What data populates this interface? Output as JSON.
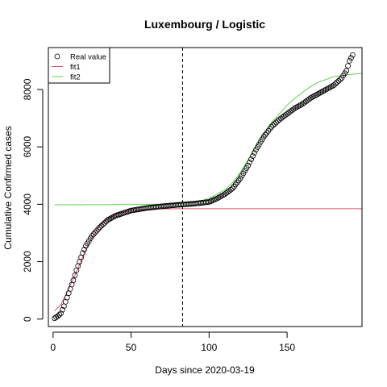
{
  "chart_data": {
    "type": "scatter",
    "title": "Luxembourg / Logistic",
    "xlabel": "Days since 2020-03-19",
    "ylabel": "Cumulative Confirmed cases",
    "xlim": [
      -3,
      198
    ],
    "ylim": [
      -260,
      9460
    ],
    "x_ticks": [
      0,
      50,
      100,
      150
    ],
    "y_ticks": [
      0,
      2000,
      4000,
      6000,
      8000
    ],
    "vline_x": 83,
    "legend": {
      "position": "top-left",
      "entries": [
        {
          "label": "Real value",
          "marker": "circle",
          "color": "#000000"
        },
        {
          "label": "fit1",
          "marker": "line",
          "color": "#DF536B"
        },
        {
          "label": "fit2",
          "marker": "line",
          "color": "#61D04F"
        }
      ]
    },
    "series": [
      {
        "name": "Real value",
        "kind": "points",
        "color": "#000000",
        "x_start": 1,
        "x_end": 192,
        "anchors": [
          [
            1,
            30
          ],
          [
            3,
            100
          ],
          [
            5,
            200
          ],
          [
            7,
            450
          ],
          [
            10,
            900
          ],
          [
            13,
            1350
          ],
          [
            15,
            1700
          ],
          [
            17,
            2000
          ],
          [
            19,
            2300
          ],
          [
            21,
            2550
          ],
          [
            25,
            2900
          ],
          [
            30,
            3200
          ],
          [
            35,
            3450
          ],
          [
            40,
            3600
          ],
          [
            50,
            3780
          ],
          [
            60,
            3870
          ],
          [
            70,
            3930
          ],
          [
            80,
            3980
          ],
          [
            90,
            4020
          ],
          [
            100,
            4080
          ],
          [
            105,
            4200
          ],
          [
            110,
            4350
          ],
          [
            115,
            4550
          ],
          [
            120,
            4900
          ],
          [
            125,
            5350
          ],
          [
            130,
            5900
          ],
          [
            135,
            6350
          ],
          [
            140,
            6700
          ],
          [
            145,
            6950
          ],
          [
            150,
            7150
          ],
          [
            155,
            7350
          ],
          [
            160,
            7500
          ],
          [
            165,
            7700
          ],
          [
            170,
            7850
          ],
          [
            175,
            8000
          ],
          [
            180,
            8150
          ],
          [
            185,
            8400
          ],
          [
            188,
            8650
          ],
          [
            190,
            9000
          ],
          [
            192,
            9200
          ]
        ]
      },
      {
        "name": "fit1",
        "kind": "line",
        "color": "#DF536B",
        "anchors": [
          [
            1,
            280
          ],
          [
            5,
            500
          ],
          [
            10,
            1050
          ],
          [
            15,
            1650
          ],
          [
            20,
            2300
          ],
          [
            25,
            2850
          ],
          [
            30,
            3250
          ],
          [
            35,
            3500
          ],
          [
            40,
            3650
          ],
          [
            50,
            3780
          ],
          [
            60,
            3830
          ],
          [
            70,
            3840
          ],
          [
            80,
            3845
          ],
          [
            100,
            3845
          ],
          [
            198,
            3845
          ]
        ]
      },
      {
        "name": "fit2",
        "kind": "line",
        "color": "#61D04F",
        "anchors": [
          [
            1,
            3980
          ],
          [
            50,
            3990
          ],
          [
            70,
            4000
          ],
          [
            90,
            4060
          ],
          [
            100,
            4200
          ],
          [
            110,
            4500
          ],
          [
            115,
            4750
          ],
          [
            120,
            5100
          ],
          [
            125,
            5550
          ],
          [
            130,
            6000
          ],
          [
            135,
            6450
          ],
          [
            140,
            6850
          ],
          [
            145,
            7150
          ],
          [
            150,
            7450
          ],
          [
            155,
            7700
          ],
          [
            160,
            7900
          ],
          [
            165,
            8100
          ],
          [
            170,
            8250
          ],
          [
            175,
            8350
          ],
          [
            180,
            8450
          ],
          [
            190,
            8520
          ],
          [
            198,
            8560
          ]
        ]
      }
    ]
  }
}
